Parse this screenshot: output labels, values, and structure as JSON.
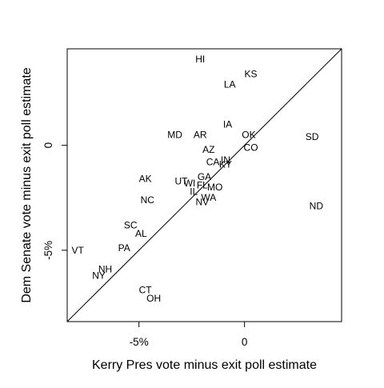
{
  "chart_data": {
    "type": "scatter",
    "title": "",
    "xlabel": "Kerry Pres vote minus exit poll estimate",
    "ylabel": "Dem Senate vote minus exit poll estimate",
    "xlim": [
      -8.4,
      4.6
    ],
    "ylim": [
      -8.4,
      4.6
    ],
    "grid": false,
    "legend": "none",
    "reference_line": {
      "slope": 1,
      "intercept": 0
    },
    "x_ticks": [
      {
        "value": -5,
        "label": "-5%"
      },
      {
        "value": 0,
        "label": "0"
      }
    ],
    "y_ticks": [
      {
        "value": -5,
        "label": "-5%"
      },
      {
        "value": 0,
        "label": "0"
      }
    ],
    "points": [
      {
        "label": "HI",
        "x": -2.1,
        "y": 4.1
      },
      {
        "label": "KS",
        "x": 0.3,
        "y": 3.4
      },
      {
        "label": "LA",
        "x": -0.7,
        "y": 2.9
      },
      {
        "label": "IA",
        "x": -0.8,
        "y": 1.0
      },
      {
        "label": "MD",
        "x": -3.3,
        "y": 0.5
      },
      {
        "label": "AR",
        "x": -2.1,
        "y": 0.5
      },
      {
        "label": "OK",
        "x": 0.2,
        "y": 0.5
      },
      {
        "label": "SD",
        "x": 3.2,
        "y": 0.4
      },
      {
        "label": "CO",
        "x": 0.3,
        "y": -0.1
      },
      {
        "label": "AZ",
        "x": -1.7,
        "y": -0.2
      },
      {
        "label": "CA",
        "x": -1.5,
        "y": -0.8
      },
      {
        "label": "IN",
        "x": -0.9,
        "y": -0.7
      },
      {
        "label": "KY",
        "x": -0.9,
        "y": -0.9
      },
      {
        "label": "AK",
        "x": -4.7,
        "y": -1.6
      },
      {
        "label": "UT",
        "x": -3.0,
        "y": -1.7
      },
      {
        "label": "WI",
        "x": -2.6,
        "y": -1.8
      },
      {
        "label": "GA",
        "x": -1.9,
        "y": -1.5
      },
      {
        "label": "FL",
        "x": -2.0,
        "y": -1.9
      },
      {
        "label": "MO",
        "x": -1.4,
        "y": -2.0
      },
      {
        "label": "IL",
        "x": -2.4,
        "y": -2.2
      },
      {
        "label": "WA",
        "x": -1.7,
        "y": -2.5
      },
      {
        "label": "NV",
        "x": -2.0,
        "y": -2.7
      },
      {
        "label": "NC",
        "x": -4.6,
        "y": -2.6
      },
      {
        "label": "ND",
        "x": 3.4,
        "y": -2.9
      },
      {
        "label": "SC",
        "x": -5.4,
        "y": -3.8
      },
      {
        "label": "AL",
        "x": -4.9,
        "y": -4.2
      },
      {
        "label": "PA",
        "x": -5.7,
        "y": -4.9
      },
      {
        "label": "VT",
        "x": -7.9,
        "y": -5.0
      },
      {
        "label": "NH",
        "x": -6.6,
        "y": -5.9
      },
      {
        "label": "NY",
        "x": -6.9,
        "y": -6.2
      },
      {
        "label": "CT",
        "x": -4.7,
        "y": -6.9
      },
      {
        "label": "OH",
        "x": -4.3,
        "y": -7.3
      }
    ]
  }
}
